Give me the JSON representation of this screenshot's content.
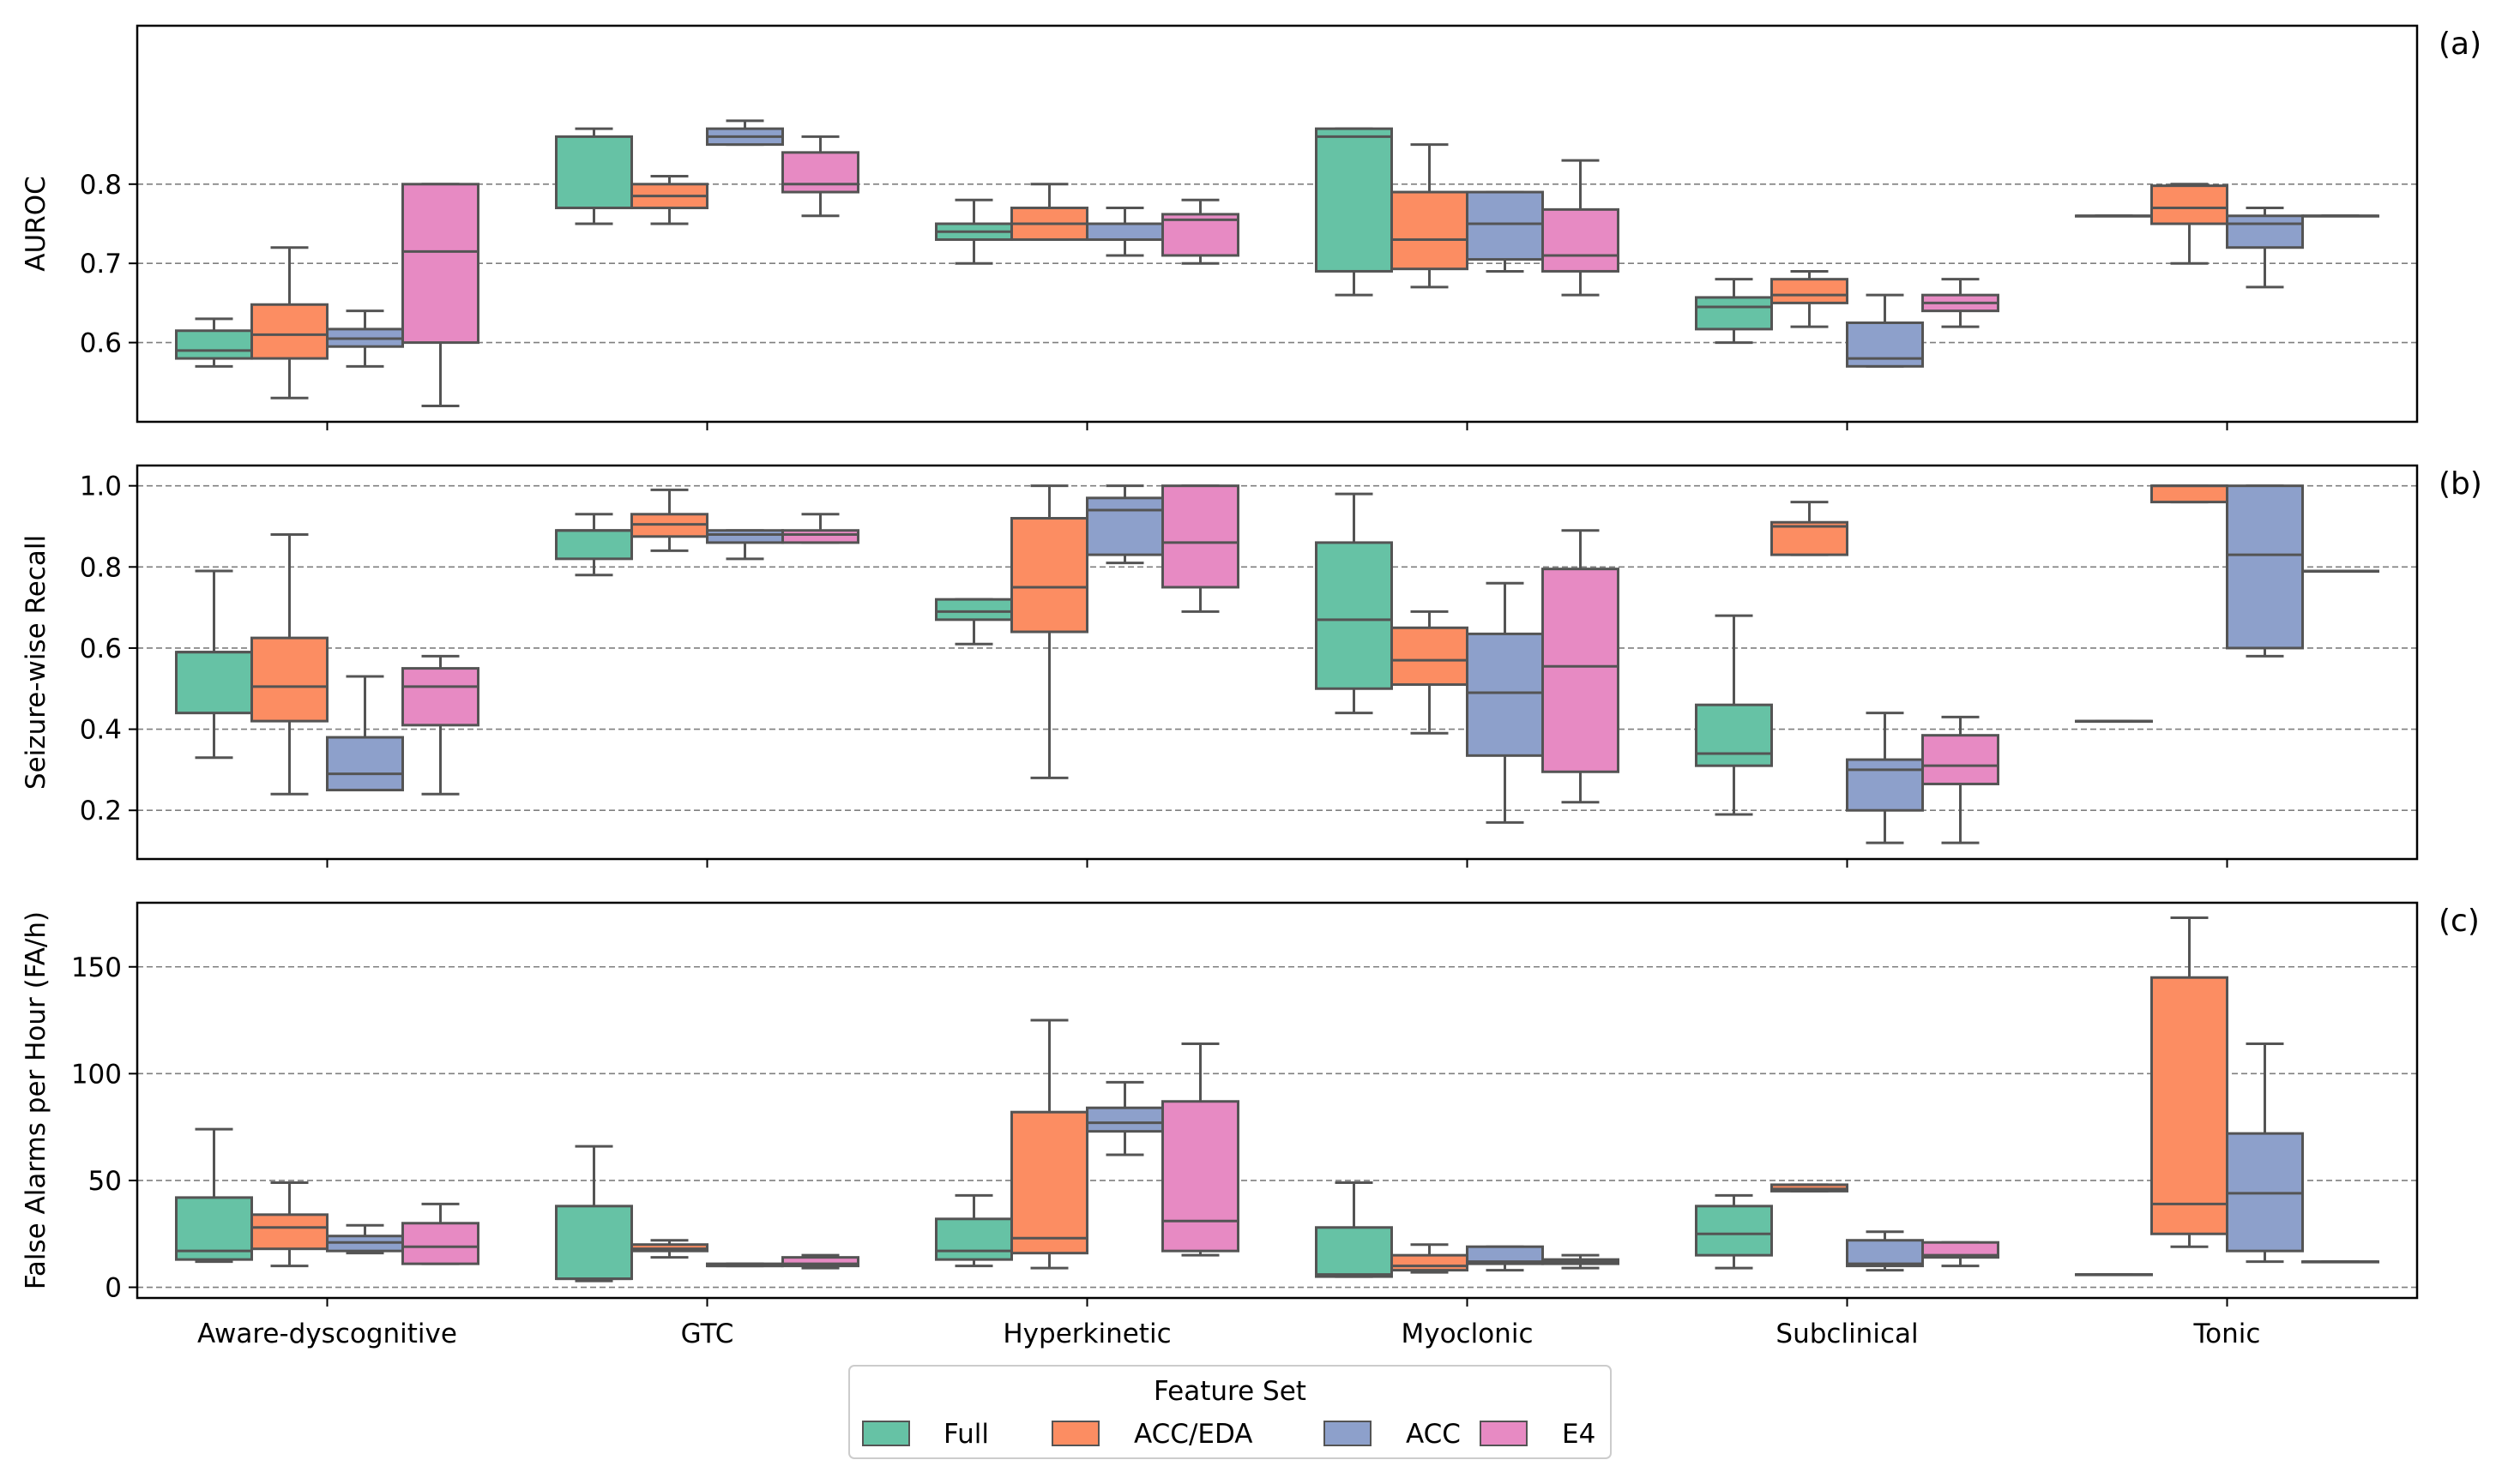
{
  "chart_data": [
    {
      "type": "box",
      "panel_label": "(a)",
      "ylabel": "AUROC",
      "ylim": [
        0.5,
        1.0
      ],
      "yticks": [
        0.6,
        0.7,
        0.8
      ],
      "ytick_labels": [
        "0.6",
        "0.7",
        "0.8"
      ],
      "grid": "horizontal dashed",
      "categories": [
        "Aware-dyscognitive",
        "GTC",
        "Hyperkinetic",
        "Myoclonic",
        "Subclinical",
        "Tonic"
      ],
      "series": [
        {
          "name": "Full",
          "boxes": [
            {
              "wlo": 0.57,
              "q1": 0.58,
              "med": 0.59,
              "q3": 0.615,
              "whi": 0.63
            },
            {
              "wlo": 0.75,
              "q1": 0.77,
              "med": 0.77,
              "q3": 0.86,
              "whi": 0.87
            },
            {
              "wlo": 0.7,
              "q1": 0.73,
              "med": 0.74,
              "q3": 0.75,
              "whi": 0.78
            },
            {
              "wlo": 0.66,
              "q1": 0.69,
              "med": 0.86,
              "q3": 0.87,
              "whi": 0.87
            },
            {
              "wlo": 0.6,
              "q1": 0.617,
              "med": 0.645,
              "q3": 0.657,
              "whi": 0.68
            },
            {
              "wlo": 0.76,
              "q1": 0.76,
              "med": 0.76,
              "q3": 0.76,
              "whi": 0.76
            }
          ]
        },
        {
          "name": "ACC/EDA",
          "boxes": [
            {
              "wlo": 0.53,
              "q1": 0.58,
              "med": 0.61,
              "q3": 0.648,
              "whi": 0.72
            },
            {
              "wlo": 0.75,
              "q1": 0.77,
              "med": 0.785,
              "q3": 0.8,
              "whi": 0.81
            },
            {
              "wlo": 0.73,
              "q1": 0.73,
              "med": 0.75,
              "q3": 0.77,
              "whi": 0.8
            },
            {
              "wlo": 0.67,
              "q1": 0.693,
              "med": 0.73,
              "q3": 0.79,
              "whi": 0.85
            },
            {
              "wlo": 0.62,
              "q1": 0.65,
              "med": 0.66,
              "q3": 0.68,
              "whi": 0.69
            },
            {
              "wlo": 0.7,
              "q1": 0.75,
              "med": 0.77,
              "q3": 0.798,
              "whi": 0.8
            }
          ]
        },
        {
          "name": "ACC",
          "boxes": [
            {
              "wlo": 0.57,
              "q1": 0.595,
              "med": 0.605,
              "q3": 0.617,
              "whi": 0.64
            },
            {
              "wlo": 0.85,
              "q1": 0.85,
              "med": 0.86,
              "q3": 0.87,
              "whi": 0.88
            },
            {
              "wlo": 0.71,
              "q1": 0.73,
              "med": 0.73,
              "q3": 0.75,
              "whi": 0.77
            },
            {
              "wlo": 0.69,
              "q1": 0.705,
              "med": 0.75,
              "q3": 0.79,
              "whi": 0.79
            },
            {
              "wlo": 0.57,
              "q1": 0.57,
              "med": 0.58,
              "q3": 0.625,
              "whi": 0.66
            },
            {
              "wlo": 0.67,
              "q1": 0.72,
              "med": 0.75,
              "q3": 0.76,
              "whi": 0.77
            }
          ]
        },
        {
          "name": "E4",
          "boxes": [
            {
              "wlo": 0.52,
              "q1": 0.6,
              "med": 0.715,
              "q3": 0.8,
              "whi": 0.8
            },
            {
              "wlo": 0.76,
              "q1": 0.79,
              "med": 0.8,
              "q3": 0.84,
              "whi": 0.86
            },
            {
              "wlo": 0.7,
              "q1": 0.71,
              "med": 0.755,
              "q3": 0.762,
              "whi": 0.78
            },
            {
              "wlo": 0.66,
              "q1": 0.69,
              "med": 0.71,
              "q3": 0.768,
              "whi": 0.83
            },
            {
              "wlo": 0.62,
              "q1": 0.64,
              "med": 0.65,
              "q3": 0.66,
              "whi": 0.68
            },
            {
              "wlo": 0.76,
              "q1": 0.76,
              "med": 0.76,
              "q3": 0.76,
              "whi": 0.76
            }
          ]
        }
      ]
    },
    {
      "type": "box",
      "panel_label": "(b)",
      "ylabel": "Seizure-wise Recall",
      "ylim": [
        0.08,
        1.05
      ],
      "yticks": [
        0.2,
        0.4,
        0.6,
        0.8,
        1.0
      ],
      "ytick_labels": [
        "0.2",
        "0.4",
        "0.6",
        "0.8",
        "1.0"
      ],
      "grid": "horizontal dashed",
      "categories": [
        "Aware-dyscognitive",
        "GTC",
        "Hyperkinetic",
        "Myoclonic",
        "Subclinical",
        "Tonic"
      ],
      "series": [
        {
          "name": "Full",
          "boxes": [
            {
              "wlo": 0.33,
              "q1": 0.44,
              "med": 0.59,
              "q3": 0.59,
              "whi": 0.79
            },
            {
              "wlo": 0.78,
              "q1": 0.82,
              "med": 0.89,
              "q3": 0.89,
              "whi": 0.93
            },
            {
              "wlo": 0.61,
              "q1": 0.67,
              "med": 0.69,
              "q3": 0.72,
              "whi": 0.72
            },
            {
              "wlo": 0.44,
              "q1": 0.5,
              "med": 0.67,
              "q3": 0.86,
              "whi": 0.98
            },
            {
              "wlo": 0.19,
              "q1": 0.31,
              "med": 0.34,
              "q3": 0.46,
              "whi": 0.68
            },
            {
              "wlo": 0.42,
              "q1": 0.42,
              "med": 0.42,
              "q3": 0.42,
              "whi": 0.42
            }
          ]
        },
        {
          "name": "ACC/EDA",
          "boxes": [
            {
              "wlo": 0.24,
              "q1": 0.42,
              "med": 0.505,
              "q3": 0.625,
              "whi": 0.88
            },
            {
              "wlo": 0.84,
              "q1": 0.875,
              "med": 0.905,
              "q3": 0.93,
              "whi": 0.99
            },
            {
              "wlo": 0.28,
              "q1": 0.64,
              "med": 0.75,
              "q3": 0.92,
              "whi": 1.0
            },
            {
              "wlo": 0.39,
              "q1": 0.51,
              "med": 0.57,
              "q3": 0.65,
              "whi": 0.69
            },
            {
              "wlo": 0.83,
              "q1": 0.83,
              "med": 0.9,
              "q3": 0.91,
              "whi": 0.96
            },
            {
              "wlo": 0.96,
              "q1": 0.96,
              "med": 1.0,
              "q3": 1.0,
              "whi": 1.0
            }
          ]
        },
        {
          "name": "ACC",
          "boxes": [
            {
              "wlo": 0.25,
              "q1": 0.25,
              "med": 0.29,
              "q3": 0.38,
              "whi": 0.53
            },
            {
              "wlo": 0.82,
              "q1": 0.86,
              "med": 0.88,
              "q3": 0.89,
              "whi": 0.89
            },
            {
              "wlo": 0.81,
              "q1": 0.83,
              "med": 0.94,
              "q3": 0.97,
              "whi": 1.0
            },
            {
              "wlo": 0.17,
              "q1": 0.335,
              "med": 0.49,
              "q3": 0.635,
              "whi": 0.76
            },
            {
              "wlo": 0.12,
              "q1": 0.2,
              "med": 0.3,
              "q3": 0.325,
              "whi": 0.44
            },
            {
              "wlo": 0.58,
              "q1": 0.6,
              "med": 0.83,
              "q3": 1.0,
              "whi": 1.0
            }
          ]
        },
        {
          "name": "E4",
          "boxes": [
            {
              "wlo": 0.24,
              "q1": 0.41,
              "med": 0.505,
              "q3": 0.55,
              "whi": 0.58
            },
            {
              "wlo": 0.86,
              "q1": 0.86,
              "med": 0.88,
              "q3": 0.89,
              "whi": 0.93
            },
            {
              "wlo": 0.69,
              "q1": 0.75,
              "med": 0.86,
              "q3": 1.0,
              "whi": 1.0
            },
            {
              "wlo": 0.22,
              "q1": 0.295,
              "med": 0.555,
              "q3": 0.795,
              "whi": 0.89
            },
            {
              "wlo": 0.12,
              "q1": 0.265,
              "med": 0.31,
              "q3": 0.385,
              "whi": 0.43
            },
            {
              "wlo": 0.79,
              "q1": 0.79,
              "med": 0.79,
              "q3": 0.79,
              "whi": 0.79
            }
          ]
        }
      ]
    },
    {
      "type": "box",
      "panel_label": "(c)",
      "ylabel": "False Alarms per Hour (FA/h)",
      "ylim": [
        -5,
        180
      ],
      "yticks": [
        0,
        50,
        100,
        150
      ],
      "ytick_labels": [
        "0",
        "50",
        "100",
        "150"
      ],
      "grid": "horizontal dashed",
      "categories": [
        "Aware-dyscognitive",
        "GTC",
        "Hyperkinetic",
        "Myoclonic",
        "Subclinical",
        "Tonic"
      ],
      "series": [
        {
          "name": "Full",
          "boxes": [
            {
              "wlo": 12,
              "q1": 13,
              "med": 17,
              "q3": 42,
              "whi": 74
            },
            {
              "wlo": 3,
              "q1": 4,
              "med": 4,
              "q3": 38,
              "whi": 66
            },
            {
              "wlo": 10,
              "q1": 13,
              "med": 17,
              "q3": 32,
              "whi": 43
            },
            {
              "wlo": 5,
              "q1": 5,
              "med": 6,
              "q3": 28,
              "whi": 49
            },
            {
              "wlo": 9,
              "q1": 15,
              "med": 25,
              "q3": 38,
              "whi": 43
            },
            {
              "wlo": 6,
              "q1": 6,
              "med": 6,
              "q3": 6,
              "whi": 6
            }
          ]
        },
        {
          "name": "ACC/EDA",
          "boxes": [
            {
              "wlo": 10,
              "q1": 18,
              "med": 28,
              "q3": 34,
              "whi": 49
            },
            {
              "wlo": 14,
              "q1": 17,
              "med": 18,
              "q3": 20,
              "whi": 22
            },
            {
              "wlo": 9,
              "q1": 16,
              "med": 23,
              "q3": 82,
              "whi": 125
            },
            {
              "wlo": 7,
              "q1": 8,
              "med": 10,
              "q3": 15,
              "whi": 20
            },
            {
              "wlo": 45,
              "q1": 45,
              "med": 46,
              "q3": 48,
              "whi": 48
            },
            {
              "wlo": 19,
              "q1": 25,
              "med": 39,
              "q3": 145,
              "whi": 173
            }
          ]
        },
        {
          "name": "ACC",
          "boxes": [
            {
              "wlo": 16,
              "q1": 17,
              "med": 21,
              "q3": 24,
              "whi": 29
            },
            {
              "wlo": 10,
              "q1": 10,
              "med": 10,
              "q3": 11,
              "whi": 11
            },
            {
              "wlo": 62,
              "q1": 73,
              "med": 77,
              "q3": 84,
              "whi": 96
            },
            {
              "wlo": 8,
              "q1": 11,
              "med": 12,
              "q3": 19,
              "whi": 19
            },
            {
              "wlo": 8,
              "q1": 10,
              "med": 11,
              "q3": 22,
              "whi": 26
            },
            {
              "wlo": 12,
              "q1": 17,
              "med": 44,
              "q3": 72,
              "whi": 114
            }
          ]
        },
        {
          "name": "E4",
          "boxes": [
            {
              "wlo": 11,
              "q1": 11,
              "med": 19,
              "q3": 30,
              "whi": 39
            },
            {
              "wlo": 9,
              "q1": 10,
              "med": 11,
              "q3": 14,
              "whi": 15
            },
            {
              "wlo": 15,
              "q1": 17,
              "med": 31,
              "q3": 87,
              "whi": 114
            },
            {
              "wlo": 9,
              "q1": 11,
              "med": 12,
              "q3": 13,
              "whi": 15
            },
            {
              "wlo": 10,
              "q1": 14,
              "med": 15,
              "q3": 21,
              "whi": 21
            },
            {
              "wlo": 12,
              "q1": 12,
              "med": 12,
              "q3": 12,
              "whi": 12
            }
          ]
        }
      ]
    }
  ],
  "legend": {
    "title": "Feature Set",
    "placement": "bottom-center",
    "entries": [
      "Full",
      "ACC/EDA",
      "ACC",
      "E4"
    ]
  },
  "colors": {
    "Full": "#66c2a5",
    "ACC/EDA": "#fc8d62",
    "ACC": "#8da0cb",
    "E4": "#e78ac3",
    "box_line": "#545454",
    "grid": "#7f7f7f"
  }
}
